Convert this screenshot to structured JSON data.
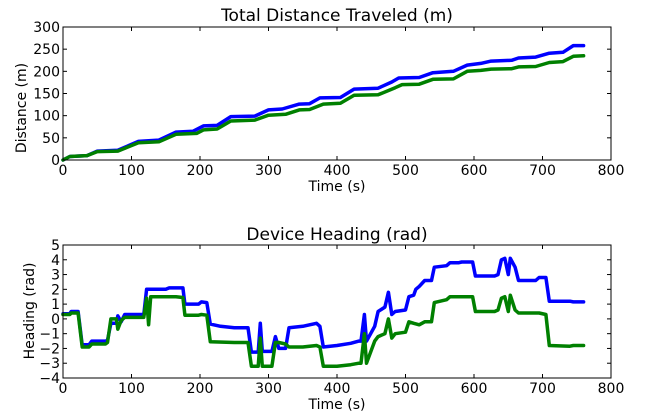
{
  "chart_data": [
    {
      "type": "line",
      "title": "Total Distance Traveled (m)",
      "xlabel": "Time (s)",
      "ylabel": "Distance (m)",
      "xlim": [
        0,
        800
      ],
      "ylim": [
        0,
        300
      ],
      "xticks": [
        0,
        100,
        200,
        300,
        400,
        500,
        600,
        700,
        800
      ],
      "yticks": [
        0,
        50,
        100,
        150,
        200,
        250,
        300
      ],
      "grid": false,
      "series": [
        {
          "color": "#0000ff",
          "points": [
            [
              0,
              0
            ],
            [
              10,
              8
            ],
            [
              35,
              10
            ],
            [
              50,
              20
            ],
            [
              80,
              22
            ],
            [
              110,
              42
            ],
            [
              140,
              45
            ],
            [
              165,
              63
            ],
            [
              190,
              65
            ],
            [
              205,
              77
            ],
            [
              225,
              78
            ],
            [
              245,
              98
            ],
            [
              280,
              99
            ],
            [
              300,
              113
            ],
            [
              320,
              115
            ],
            [
              345,
              126
            ],
            [
              360,
              127
            ],
            [
              375,
              140
            ],
            [
              405,
              141
            ],
            [
              425,
              160
            ],
            [
              460,
              162
            ],
            [
              480,
              176
            ],
            [
              490,
              185
            ],
            [
              520,
              186
            ],
            [
              540,
              197
            ],
            [
              570,
              200
            ],
            [
              590,
              214
            ],
            [
              610,
              218
            ],
            [
              625,
              223
            ],
            [
              655,
              225
            ],
            [
              665,
              230
            ],
            [
              690,
              232
            ],
            [
              710,
              241
            ],
            [
              730,
              243
            ],
            [
              745,
              258
            ],
            [
              760,
              258
            ]
          ]
        },
        {
          "color": "#008000",
          "points": [
            [
              0,
              0
            ],
            [
              10,
              8
            ],
            [
              35,
              10
            ],
            [
              50,
              19
            ],
            [
              80,
              20
            ],
            [
              110,
              39
            ],
            [
              140,
              41
            ],
            [
              165,
              58
            ],
            [
              195,
              60
            ],
            [
              205,
              68
            ],
            [
              225,
              70
            ],
            [
              245,
              88
            ],
            [
              280,
              90
            ],
            [
              300,
              101
            ],
            [
              325,
              103
            ],
            [
              345,
              113
            ],
            [
              360,
              114
            ],
            [
              380,
              126
            ],
            [
              405,
              128
            ],
            [
              425,
              146
            ],
            [
              460,
              147
            ],
            [
              485,
              163
            ],
            [
              495,
              170
            ],
            [
              520,
              171
            ],
            [
              540,
              182
            ],
            [
              570,
              183
            ],
            [
              590,
              200
            ],
            [
              610,
              202
            ],
            [
              625,
              205
            ],
            [
              655,
              206
            ],
            [
              665,
              210
            ],
            [
              690,
              211
            ],
            [
              710,
              220
            ],
            [
              730,
              222
            ],
            [
              745,
              234
            ],
            [
              760,
              235
            ]
          ]
        }
      ]
    },
    {
      "type": "line",
      "title": "Device Heading (rad)",
      "xlabel": "Time (s)",
      "ylabel": "Heading (rad)",
      "xlim": [
        0,
        800
      ],
      "ylim": [
        -4,
        5
      ],
      "xticks": [
        0,
        100,
        200,
        300,
        400,
        500,
        600,
        700,
        800
      ],
      "yticks": [
        -4,
        -3,
        -2,
        -1,
        0,
        1,
        2,
        3,
        4,
        5
      ],
      "grid": false,
      "series": [
        {
          "color": "#0000ff",
          "points": [
            [
              0,
              0.35
            ],
            [
              10,
              0.35
            ],
            [
              12,
              0.5
            ],
            [
              22,
              0.5
            ],
            [
              28,
              -1.75
            ],
            [
              38,
              -1.75
            ],
            [
              42,
              -1.5
            ],
            [
              62,
              -1.5
            ],
            [
              65,
              -1.45
            ],
            [
              70,
              -0.3
            ],
            [
              78,
              -0.3
            ],
            [
              80,
              0.2
            ],
            [
              85,
              -0.2
            ],
            [
              90,
              0.3
            ],
            [
              118,
              0.3
            ],
            [
              122,
              2.0
            ],
            [
              150,
              2.0
            ],
            [
              155,
              2.1
            ],
            [
              175,
              2.1
            ],
            [
              178,
              1.0
            ],
            [
              198,
              1.0
            ],
            [
              202,
              1.15
            ],
            [
              210,
              1.1
            ],
            [
              215,
              -0.35
            ],
            [
              230,
              -0.5
            ],
            [
              250,
              -0.6
            ],
            [
              270,
              -0.6
            ],
            [
              275,
              -2.25
            ],
            [
              285,
              -2.25
            ],
            [
              288,
              -0.3
            ],
            [
              291,
              -2.2
            ],
            [
              305,
              -2.2
            ],
            [
              310,
              -1.2
            ],
            [
              315,
              -2.0
            ],
            [
              325,
              -2.0
            ],
            [
              330,
              -0.6
            ],
            [
              350,
              -0.5
            ],
            [
              370,
              -0.3
            ],
            [
              375,
              -0.5
            ],
            [
              380,
              -1.9
            ],
            [
              400,
              -1.8
            ],
            [
              420,
              -1.65
            ],
            [
              432,
              -1.5
            ],
            [
              435,
              -1.5
            ],
            [
              440,
              0.3
            ],
            [
              443,
              -1.5
            ],
            [
              455,
              -0.5
            ],
            [
              460,
              0.5
            ],
            [
              470,
              0.8
            ],
            [
              475,
              1.8
            ],
            [
              480,
              0.3
            ],
            [
              485,
              0.5
            ],
            [
              500,
              0.6
            ],
            [
              505,
              1.5
            ],
            [
              512,
              1.6
            ],
            [
              515,
              2.0
            ],
            [
              520,
              2.2
            ],
            [
              528,
              2.6
            ],
            [
              538,
              2.6
            ],
            [
              542,
              3.5
            ],
            [
              560,
              3.6
            ],
            [
              565,
              3.8
            ],
            [
              578,
              3.8
            ],
            [
              582,
              3.85
            ],
            [
              598,
              3.85
            ],
            [
              602,
              2.9
            ],
            [
              630,
              2.9
            ],
            [
              635,
              3.0
            ],
            [
              640,
              4.0
            ],
            [
              645,
              4.1
            ],
            [
              650,
              3.0
            ],
            [
              653,
              4.1
            ],
            [
              660,
              3.5
            ],
            [
              665,
              2.6
            ],
            [
              690,
              2.6
            ],
            [
              695,
              2.8
            ],
            [
              705,
              2.8
            ],
            [
              710,
              1.2
            ],
            [
              740,
              1.2
            ],
            [
              745,
              1.15
            ],
            [
              760,
              1.15
            ]
          ]
        },
        {
          "color": "#008000",
          "points": [
            [
              0,
              0.3
            ],
            [
              10,
              0.3
            ],
            [
              12,
              0.4
            ],
            [
              22,
              0.4
            ],
            [
              28,
              -1.9
            ],
            [
              38,
              -1.9
            ],
            [
              42,
              -1.7
            ],
            [
              62,
              -1.7
            ],
            [
              65,
              -1.6
            ],
            [
              70,
              0.0
            ],
            [
              78,
              0.0
            ],
            [
              80,
              -0.7
            ],
            [
              85,
              -0.1
            ],
            [
              90,
              0.1
            ],
            [
              118,
              0.1
            ],
            [
              122,
              1.4
            ],
            [
              125,
              -0.4
            ],
            [
              128,
              1.5
            ],
            [
              150,
              1.5
            ],
            [
              155,
              1.5
            ],
            [
              165,
              1.5
            ],
            [
              175,
              1.45
            ],
            [
              178,
              0.25
            ],
            [
              198,
              0.25
            ],
            [
              202,
              0.3
            ],
            [
              210,
              0.25
            ],
            [
              215,
              -1.55
            ],
            [
              250,
              -1.6
            ],
            [
              270,
              -1.6
            ],
            [
              275,
              -3.2
            ],
            [
              285,
              -3.2
            ],
            [
              288,
              -1.3
            ],
            [
              291,
              -3.2
            ],
            [
              305,
              -3.2
            ],
            [
              310,
              -1.6
            ],
            [
              315,
              -1.6
            ],
            [
              325,
              -1.7
            ],
            [
              330,
              -1.9
            ],
            [
              350,
              -1.9
            ],
            [
              370,
              -1.8
            ],
            [
              375,
              -1.9
            ],
            [
              380,
              -3.2
            ],
            [
              400,
              -3.2
            ],
            [
              420,
              -3.1
            ],
            [
              432,
              -3.0
            ],
            [
              435,
              -3.0
            ],
            [
              440,
              -1.0
            ],
            [
              443,
              -3.0
            ],
            [
              455,
              -1.5
            ],
            [
              460,
              -1.2
            ],
            [
              470,
              -1.0
            ],
            [
              475,
              0.0
            ],
            [
              480,
              -1.3
            ],
            [
              485,
              -1.0
            ],
            [
              500,
              -0.9
            ],
            [
              505,
              -0.2
            ],
            [
              512,
              -0.3
            ],
            [
              520,
              -0.4
            ],
            [
              528,
              -0.2
            ],
            [
              538,
              -0.2
            ],
            [
              542,
              1.1
            ],
            [
              560,
              1.3
            ],
            [
              565,
              1.5
            ],
            [
              598,
              1.5
            ],
            [
              602,
              0.5
            ],
            [
              630,
              0.5
            ],
            [
              635,
              0.6
            ],
            [
              640,
              1.4
            ],
            [
              645,
              1.5
            ],
            [
              650,
              0.5
            ],
            [
              653,
              1.6
            ],
            [
              660,
              0.6
            ],
            [
              665,
              0.4
            ],
            [
              690,
              0.4
            ],
            [
              695,
              0.4
            ],
            [
              705,
              0.3
            ],
            [
              710,
              -1.8
            ],
            [
              740,
              -1.85
            ],
            [
              745,
              -1.8
            ],
            [
              760,
              -1.8
            ]
          ]
        }
      ]
    }
  ]
}
